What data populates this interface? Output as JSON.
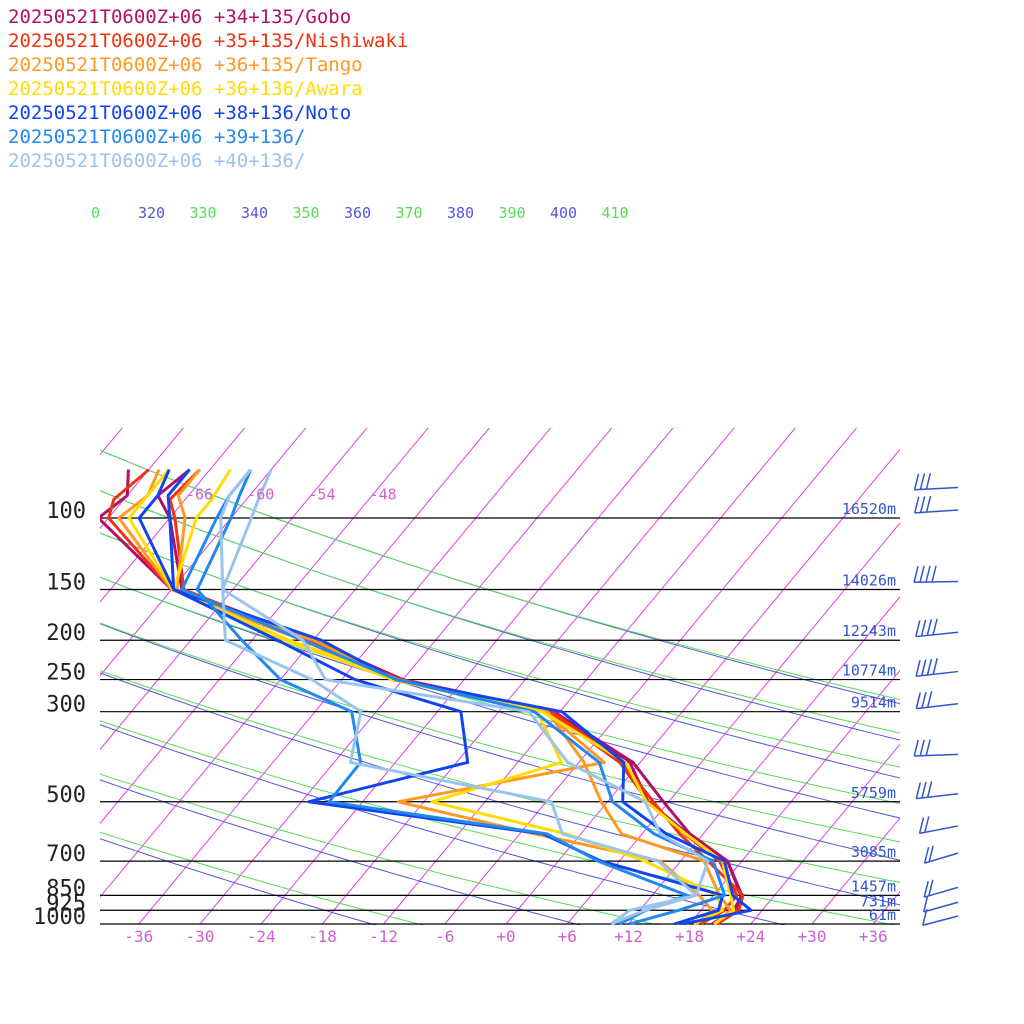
{
  "colors": {
    "isobar": "#000000",
    "isotherm": "#e040e0",
    "dry_adiabat": "#5555dd",
    "moist_adiabat": "#55dd55",
    "height_label": "#3355cc",
    "tick_label": "#d060d0"
  },
  "chart_data": {
    "type": "line",
    "subtype": "skew-T log-p sounding",
    "x_unit": "°C",
    "y_unit": "hPa",
    "xlim": [
      -40,
      38
    ],
    "ylim": [
      1000,
      76
    ],
    "y_scale": "log",
    "pressure_levels": [
      100,
      150,
      200,
      250,
      300,
      500,
      700,
      850,
      925,
      1000
    ],
    "pressure_level_labels": [
      "100",
      "150",
      "200",
      "250",
      "300",
      "500",
      "700",
      "850",
      "925",
      "1000"
    ],
    "height_labels": [
      "16520m",
      "14026m",
      "12243m",
      "10774m",
      "9514m",
      "5759m",
      "3085m",
      "1457m",
      "731m",
      "61m"
    ],
    "x_tick_labels": [
      "-36",
      "-30",
      "-24",
      "-18",
      "-12",
      "-6",
      "+0",
      "+6",
      "+12",
      "+18",
      "+24",
      "+30",
      "+36"
    ],
    "x_tick_values": [
      -36,
      -30,
      -24,
      -18,
      -12,
      -6,
      0,
      6,
      12,
      18,
      24,
      30,
      36
    ],
    "theta_labels": [
      "0",
      "320",
      "330",
      "340",
      "350",
      "360",
      "370",
      "380",
      "390",
      "400",
      "410"
    ],
    "upper_isotherm_labels": [
      "-66",
      "-60",
      "-54",
      "-48"
    ],
    "legend_placement": "top-left",
    "series": [
      {
        "name": "20250521T0600Z+06 +34+135/Gobo",
        "color": "#b0106a",
        "temperature": [
          [
            20.5,
            1000
          ],
          [
            21.6,
            925
          ],
          [
            20.7,
            850
          ],
          [
            16.6,
            700
          ],
          [
            10.7,
            600
          ],
          [
            5.5,
            500
          ],
          [
            -0.7,
            400
          ],
          [
            -12.6,
            300
          ],
          [
            -30,
            250
          ],
          [
            -42,
            200
          ],
          [
            -59,
            150
          ],
          [
            -66,
            100
          ],
          [
            -69,
            88
          ],
          [
            -68,
            76
          ]
        ],
        "dewpoint": [
          [
            20.2,
            1000
          ],
          [
            21.2,
            925
          ],
          [
            20.8,
            850
          ],
          [
            16.6,
            700
          ],
          [
            10.5,
            600
          ],
          [
            4,
            500
          ],
          [
            -1,
            400
          ],
          [
            -12.9,
            300
          ],
          [
            -31,
            250
          ],
          [
            -43,
            200
          ],
          [
            -60,
            150
          ],
          [
            -73,
            100
          ],
          [
            -72,
            88
          ],
          [
            -74,
            76
          ]
        ]
      },
      {
        "name": "20250521T0600Z+06 +35+135/Nishiwaki",
        "color": "#ee3311",
        "temperature": [
          [
            20.7,
            1000
          ],
          [
            21.7,
            925
          ],
          [
            20.9,
            850
          ],
          [
            14.7,
            700
          ],
          [
            9.7,
            600
          ],
          [
            4.5,
            500
          ],
          [
            -1.7,
            400
          ],
          [
            -12.8,
            300
          ],
          [
            -30.4,
            250
          ],
          [
            -42.5,
            200
          ],
          [
            -58.8,
            150
          ],
          [
            -65.5,
            100
          ],
          [
            -67.5,
            90
          ],
          [
            -67,
            76
          ]
        ],
        "dewpoint": [
          [
            19.1,
            1000
          ],
          [
            20.3,
            925
          ],
          [
            20.3,
            850
          ],
          [
            15.8,
            700
          ],
          [
            10.2,
            600
          ],
          [
            4,
            500
          ],
          [
            -2,
            400
          ],
          [
            -13,
            300
          ],
          [
            -31,
            250
          ],
          [
            -43,
            200
          ],
          [
            -60,
            150
          ],
          [
            -72,
            100
          ],
          [
            -73,
            90
          ],
          [
            -72,
            76
          ]
        ]
      },
      {
        "name": "20250521T0600Z+06 +36+135/Tango",
        "color": "#ff9922",
        "temperature": [
          [
            20.5,
            1000
          ],
          [
            20.9,
            925
          ],
          [
            18.6,
            850
          ],
          [
            14.3,
            700
          ],
          [
            4,
            600
          ],
          [
            -0.6,
            500
          ],
          [
            -5.5,
            400
          ],
          [
            -13.2,
            300
          ],
          [
            -30.5,
            250
          ],
          [
            -42,
            200
          ],
          [
            -59.5,
            150
          ],
          [
            -64.5,
            100
          ],
          [
            -67,
            88
          ],
          [
            -67,
            76
          ]
        ],
        "dewpoint": [
          [
            18.7,
            1000
          ],
          [
            19.1,
            925
          ],
          [
            16.6,
            850
          ],
          [
            10,
            700
          ],
          [
            -4.5,
            600
          ],
          [
            -20.5,
            500
          ],
          [
            -3.5,
            400
          ],
          [
            -13.5,
            300
          ],
          [
            -31,
            250
          ],
          [
            -43,
            200
          ],
          [
            -60,
            150
          ],
          [
            -71,
            100
          ],
          [
            -70,
            88
          ],
          [
            -71,
            76
          ]
        ]
      },
      {
        "name": "20250521T0600Z+06 +36+136/Awara",
        "color": "#ffdd00",
        "temperature": [
          [
            20.4,
            1000
          ],
          [
            21.2,
            925
          ],
          [
            19.7,
            850
          ],
          [
            16.1,
            700
          ],
          [
            10.3,
            600
          ],
          [
            3.8,
            500
          ],
          [
            -1.4,
            400
          ],
          [
            -13.7,
            300
          ],
          [
            -30.5,
            250
          ],
          [
            -44.4,
            200
          ],
          [
            -59.8,
            150
          ],
          [
            -63.4,
            100
          ],
          [
            -63.4,
            90
          ],
          [
            -64,
            76
          ]
        ],
        "dewpoint": [
          [
            18.4,
            1000
          ],
          [
            20.1,
            925
          ],
          [
            18.4,
            850
          ],
          [
            8.5,
            700
          ],
          [
            -1.4,
            600
          ],
          [
            -17.2,
            500
          ],
          [
            -7.7,
            400
          ],
          [
            -14.2,
            300
          ],
          [
            -31,
            250
          ],
          [
            -44.8,
            200
          ],
          [
            -59.9,
            150
          ],
          [
            -70,
            100
          ],
          [
            -70,
            90
          ],
          [
            -70,
            76
          ]
        ]
      },
      {
        "name": "20250521T0600Z+06 +38+136/Noto",
        "color": "#1144ee",
        "temperature": [
          [
            17.3,
            1000
          ],
          [
            22.9,
            925
          ],
          [
            19.9,
            850
          ],
          [
            16.3,
            700
          ],
          [
            8.4,
            600
          ],
          [
            1.5,
            500
          ],
          [
            -1.6,
            400
          ],
          [
            -11.8,
            300
          ],
          [
            -30.7,
            250
          ],
          [
            -41.2,
            200
          ],
          [
            -59.8,
            150
          ],
          [
            -66,
            100
          ],
          [
            -68,
            88
          ],
          [
            -68,
            76
          ]
        ],
        "dewpoint": [
          [
            16.5,
            1000
          ],
          [
            19.7,
            925
          ],
          [
            18.9,
            850
          ],
          [
            4.2,
            700
          ],
          [
            -3.7,
            600
          ],
          [
            -29.3,
            500
          ],
          [
            -16.9,
            400
          ],
          [
            -21.7,
            300
          ],
          [
            -34.7,
            250
          ],
          [
            -45.5,
            200
          ],
          [
            -59.8,
            150
          ],
          [
            -69,
            100
          ],
          [
            -69,
            88
          ],
          [
            -70,
            76
          ]
        ]
      },
      {
        "name": "20250521T0600Z+06 +39+136/",
        "color": "#2288ee",
        "temperature": [
          [
            12.1,
            1000
          ],
          [
            15.8,
            925
          ],
          [
            19.1,
            850
          ],
          [
            15.2,
            700
          ],
          [
            7.2,
            600
          ],
          [
            0.5,
            500
          ],
          [
            -4,
            400
          ],
          [
            -14.5,
            300
          ],
          [
            -30.6,
            250
          ],
          [
            -43,
            200
          ],
          [
            -59,
            150
          ],
          [
            -61.4,
            100
          ],
          [
            -62,
            88
          ],
          [
            -62,
            76
          ]
        ],
        "dewpoint": [
          [
            11.1,
            1000
          ],
          [
            12.6,
            925
          ],
          [
            15.4,
            850
          ],
          [
            3.9,
            700
          ],
          [
            -3.3,
            600
          ],
          [
            -27.3,
            500
          ],
          [
            -27.4,
            400
          ],
          [
            -32.4,
            300
          ],
          [
            -42,
            250
          ],
          [
            -49,
            200
          ],
          [
            -57.5,
            150
          ],
          [
            -60,
            100
          ],
          [
            -61,
            88
          ],
          [
            -62,
            76
          ]
        ]
      },
      {
        "name": "20250521T0600Z+06 +40+136/",
        "color": "#99c4ee",
        "temperature": [
          [
            10.3,
            1000
          ],
          [
            12.5,
            925
          ],
          [
            16.3,
            850
          ],
          [
            14.7,
            700
          ],
          [
            7.8,
            600
          ],
          [
            3.7,
            500
          ],
          [
            -7.1,
            400
          ],
          [
            -15,
            300
          ],
          [
            -37.6,
            250
          ],
          [
            -43,
            200
          ],
          [
            -55,
            150
          ],
          [
            -61,
            100
          ],
          [
            -62,
            88
          ],
          [
            -62,
            76
          ]
        ],
        "dewpoint": [
          [
            10.3,
            1000
          ],
          [
            11,
            925
          ],
          [
            16.3,
            850
          ],
          [
            9.8,
            700
          ],
          [
            -1.8,
            600
          ],
          [
            -5.5,
            500
          ],
          [
            -28.4,
            400
          ],
          [
            -31.5,
            300
          ],
          [
            -38.9,
            250
          ],
          [
            -50.6,
            200
          ],
          [
            -55,
            150
          ],
          [
            -58,
            100
          ],
          [
            -59,
            88
          ],
          [
            -60,
            76
          ]
        ]
      }
    ],
    "wind_barbs": [
      {
        "pressure": 1000,
        "u": 8,
        "v": 6
      },
      {
        "pressure": 925,
        "u": 10,
        "v": 8
      },
      {
        "pressure": 850,
        "u": 12,
        "v": 10
      },
      {
        "pressure": 700,
        "u": 14,
        "v": 12
      },
      {
        "pressure": 600,
        "u": 18,
        "v": 10
      },
      {
        "pressure": 500,
        "u": 24,
        "v": 8
      },
      {
        "pressure": 400,
        "u": 30,
        "v": 3
      },
      {
        "pressure": 300,
        "u": 30,
        "v": 10
      },
      {
        "pressure": 250,
        "u": 38,
        "v": 12
      },
      {
        "pressure": 200,
        "u": 34,
        "v": 10
      },
      {
        "pressure": 150,
        "u": 44,
        "v": 2
      },
      {
        "pressure": 100,
        "u": 32,
        "v": 6
      },
      {
        "pressure": 88,
        "u": 26,
        "v": 4
      }
    ]
  }
}
